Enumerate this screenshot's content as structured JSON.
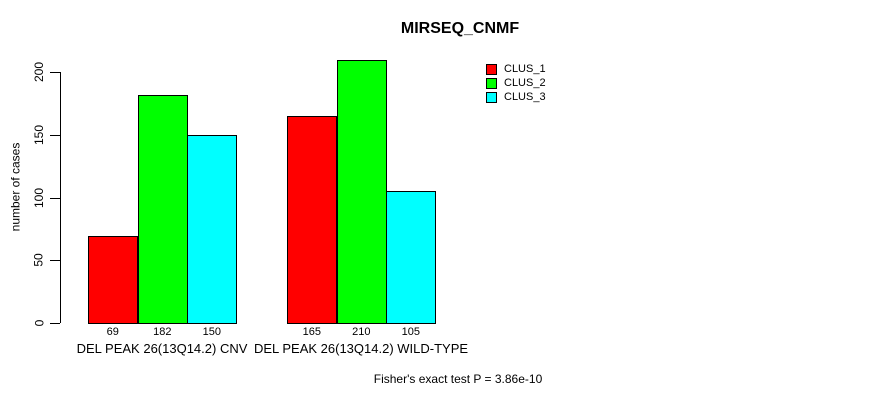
{
  "chart_data": {
    "type": "bar",
    "title": "MIRSEQ_CNMF",
    "xlabel": "",
    "ylabel": "number of cases",
    "ylim": [
      0,
      210
    ],
    "yticks": [
      0,
      50,
      100,
      150,
      200
    ],
    "grid": false,
    "legend_position": "top-right",
    "bar_value_labels": true,
    "categories": [
      "DEL PEAK 26(13Q14.2) CNV",
      "DEL PEAK 26(13Q14.2) WILD-TYPE"
    ],
    "series": [
      {
        "name": "CLUS_1",
        "color": "#ff0000",
        "values": [
          69,
          165
        ]
      },
      {
        "name": "CLUS_2",
        "color": "#00ff00",
        "values": [
          182,
          210
        ]
      },
      {
        "name": "CLUS_3",
        "color": "#00ffff",
        "values": [
          150,
          105
        ]
      }
    ],
    "annotation": "Fisher's exact test P = 3.86e-10"
  }
}
